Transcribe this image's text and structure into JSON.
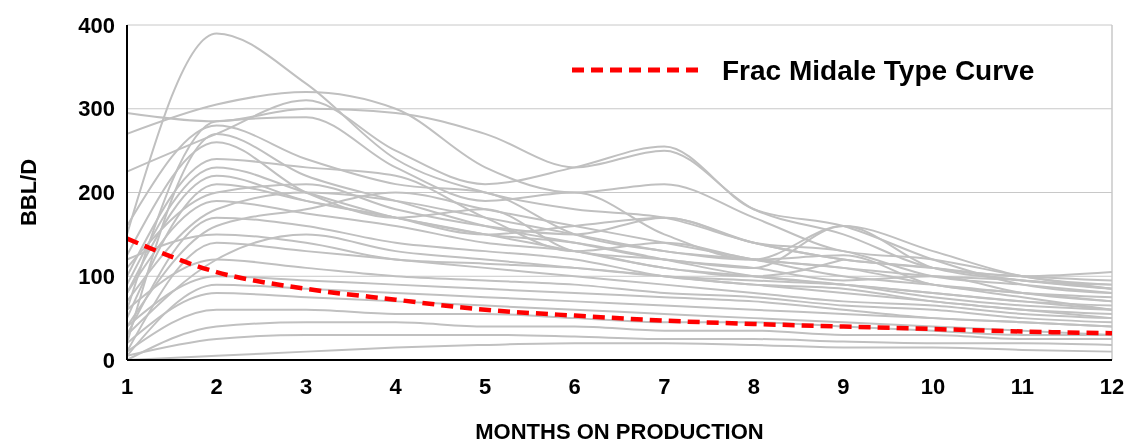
{
  "chart_data": {
    "type": "line",
    "xlabel": "MONTHS ON PRODUCTION",
    "ylabel": "BBL/D",
    "x": [
      1,
      2,
      3,
      4,
      5,
      6,
      7,
      8,
      9,
      10,
      11,
      12
    ],
    "xlim": [
      1,
      12
    ],
    "xticks": [
      1,
      2,
      3,
      4,
      5,
      6,
      7,
      8,
      9,
      10,
      11,
      12
    ],
    "ylim": [
      0,
      400
    ],
    "yticks": [
      0,
      100,
      200,
      300,
      400
    ],
    "grid": "y",
    "legend": "top right",
    "series": [
      {
        "color": "#c0c0c0",
        "values": [
          150,
          390,
          330,
          240,
          200,
          180,
          170,
          140,
          120,
          110,
          95,
          90
        ]
      },
      {
        "color": "#c0c0c0",
        "values": [
          295,
          285,
          300,
          295,
          270,
          230,
          250,
          180,
          150,
          110,
          100,
          95
        ]
      },
      {
        "color": "#c0c0c0",
        "values": [
          270,
          305,
          320,
          300,
          230,
          200,
          210,
          170,
          130,
          120,
          100,
          85
        ]
      },
      {
        "color": "#c0c0c0",
        "values": [
          225,
          270,
          310,
          250,
          210,
          230,
          255,
          180,
          160,
          120,
          90,
          80
        ]
      },
      {
        "color": "#c0c0c0",
        "values": [
          60,
          285,
          290,
          230,
          190,
          200,
          150,
          120,
          160,
          110,
          95,
          85
        ]
      },
      {
        "color": "#c0c0c0",
        "values": [
          160,
          280,
          240,
          210,
          200,
          150,
          130,
          120,
          125,
          90,
          80,
          70
        ]
      },
      {
        "color": "#c0c0c0",
        "values": [
          20,
          270,
          220,
          190,
          160,
          140,
          120,
          110,
          95,
          100,
          80,
          70
        ]
      },
      {
        "color": "#c0c0c0",
        "values": [
          100,
          240,
          230,
          220,
          170,
          130,
          140,
          120,
          110,
          90,
          75,
          60
        ]
      },
      {
        "color": "#c0c0c0",
        "values": [
          50,
          210,
          190,
          170,
          150,
          140,
          120,
          100,
          90,
          80,
          70,
          60
        ]
      },
      {
        "color": "#c0c0c0",
        "values": [
          80,
          190,
          175,
          160,
          140,
          130,
          110,
          100,
          90,
          75,
          65,
          60
        ]
      },
      {
        "color": "#c0c0c0",
        "values": [
          30,
          170,
          160,
          140,
          130,
          120,
          100,
          90,
          80,
          70,
          60,
          55
        ]
      },
      {
        "color": "#c0c0c0",
        "values": [
          120,
          150,
          140,
          120,
          115,
          110,
          100,
          90,
          85,
          70,
          60,
          50
        ]
      },
      {
        "color": "#c0c0c0",
        "values": [
          10,
          140,
          130,
          120,
          110,
          100,
          90,
          80,
          70,
          65,
          55,
          50
        ]
      },
      {
        "color": "#c0c0c0",
        "values": [
          60,
          120,
          110,
          100,
          95,
          90,
          80,
          75,
          65,
          60,
          50,
          45
        ]
      },
      {
        "color": "#c0c0c0",
        "values": [
          40,
          100,
          95,
          90,
          85,
          80,
          75,
          70,
          60,
          50,
          45,
          40
        ]
      },
      {
        "color": "#c0c0c0",
        "values": [
          5,
          90,
          85,
          80,
          75,
          70,
          65,
          60,
          55,
          50,
          45,
          40
        ]
      },
      {
        "color": "#c0c0c0",
        "values": [
          20,
          80,
          75,
          70,
          65,
          60,
          55,
          50,
          45,
          40,
          35,
          30
        ]
      },
      {
        "color": "#c0c0c0",
        "values": [
          10,
          60,
          60,
          55,
          55,
          50,
          45,
          45,
          40,
          35,
          30,
          30
        ]
      },
      {
        "color": "#c0c0c0",
        "values": [
          0,
          40,
          45,
          45,
          40,
          40,
          35,
          35,
          30,
          30,
          25,
          25
        ]
      },
      {
        "color": "#c0c0c0",
        "values": [
          5,
          25,
          30,
          30,
          30,
          28,
          25,
          25,
          22,
          20,
          20,
          18
        ]
      },
      {
        "color": "#c0c0c0",
        "values": [
          0,
          5,
          10,
          15,
          18,
          20,
          20,
          18,
          15,
          15,
          12,
          10
        ]
      },
      {
        "color": "#c0c0c0",
        "values": [
          70,
          180,
          200,
          190,
          170,
          150,
          130,
          120,
          110,
          100,
          95,
          85
        ]
      },
      {
        "color": "#c0c0c0",
        "values": [
          90,
          230,
          200,
          170,
          150,
          160,
          170,
          140,
          120,
          110,
          100,
          105
        ]
      },
      {
        "color": "#c0c0c0",
        "values": [
          40,
          160,
          180,
          200,
          180,
          160,
          140,
          120,
          100,
          90,
          80,
          75
        ]
      },
      {
        "color": "#c0c0c0",
        "values": [
          110,
          200,
          210,
          180,
          160,
          150,
          170,
          140,
          130,
          100,
          90,
          80
        ]
      },
      {
        "color": "#c0c0c0",
        "values": [
          30,
          120,
          150,
          130,
          120,
          110,
          100,
          95,
          90,
          80,
          70,
          65
        ]
      },
      {
        "color": "#c0c0c0",
        "values": [
          125,
          260,
          200,
          170,
          180,
          130,
          120,
          110,
          160,
          130,
          100,
          90
        ]
      },
      {
        "color": "#c0c0c0",
        "values": [
          80,
          220,
          190,
          170,
          150,
          130,
          110,
          100,
          120,
          null,
          null,
          null
        ]
      },
      {
        "name": "Frac Midale Type Curve",
        "color": "#ff0000",
        "line_style": "dashed",
        "values": [
          145,
          105,
          85,
          72,
          60,
          53,
          47,
          43,
          40,
          37,
          34,
          32
        ]
      }
    ]
  }
}
